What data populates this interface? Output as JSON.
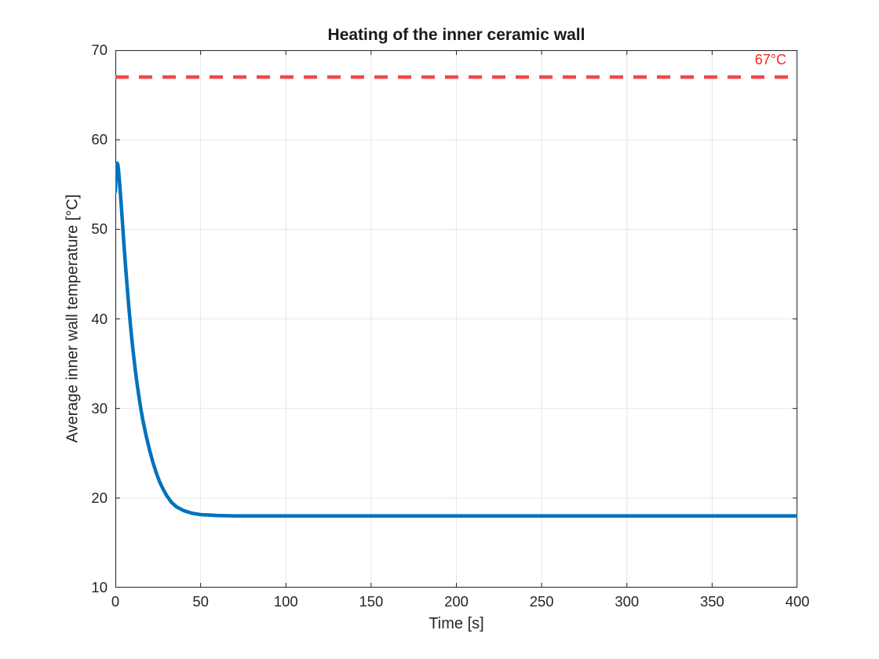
{
  "chart_data": {
    "type": "line",
    "title": "Heating of the inner ceramic wall",
    "xlabel": "Time [s]",
    "ylabel": "Average inner wall temperature [°C]",
    "xlim": [
      0,
      400
    ],
    "ylim": [
      10,
      70
    ],
    "xticks": [
      0,
      50,
      100,
      150,
      200,
      250,
      300,
      350,
      400
    ],
    "yticks": [
      10,
      20,
      30,
      40,
      50,
      60,
      70
    ],
    "grid": true,
    "legend_position": "none",
    "threshold": {
      "value": 67,
      "label": "67°C",
      "line_color": "#f2484a",
      "label_color": "#ee2c1f",
      "style": "dashed"
    },
    "series": [
      {
        "name": "average-inner-wall-temperature",
        "color": "#0072bd",
        "line_width": 4.5,
        "points": [
          [
            0,
            54.2
          ],
          [
            0.5,
            56.6
          ],
          [
            1,
            57.4
          ],
          [
            1.5,
            57.2
          ],
          [
            2,
            56.3
          ],
          [
            3,
            53.9
          ],
          [
            4,
            51.2
          ],
          [
            5,
            48.4
          ],
          [
            6,
            45.8
          ],
          [
            7,
            43.4
          ],
          [
            8,
            41.1
          ],
          [
            9,
            39.0
          ],
          [
            10,
            37.1
          ],
          [
            11,
            35.4
          ],
          [
            12,
            33.8
          ],
          [
            13,
            32.4
          ],
          [
            14,
            31.1
          ],
          [
            15,
            29.9
          ],
          [
            16,
            28.8
          ],
          [
            17,
            27.9
          ],
          [
            18,
            27.0
          ],
          [
            19,
            26.2
          ],
          [
            20,
            25.4
          ],
          [
            22,
            24.0
          ],
          [
            24,
            22.8
          ],
          [
            26,
            21.8
          ],
          [
            28,
            21.0
          ],
          [
            30,
            20.3
          ],
          [
            33,
            19.5
          ],
          [
            36,
            19.0
          ],
          [
            40,
            18.6
          ],
          [
            45,
            18.3
          ],
          [
            50,
            18.15
          ],
          [
            55,
            18.1
          ],
          [
            60,
            18.05
          ],
          [
            70,
            18.0
          ],
          [
            80,
            18.0
          ],
          [
            100,
            18.0
          ],
          [
            150,
            18.0
          ],
          [
            200,
            18.0
          ],
          [
            250,
            18.0
          ],
          [
            300,
            18.0
          ],
          [
            350,
            18.0
          ],
          [
            400,
            18.0
          ]
        ]
      }
    ],
    "colors": {
      "axis": "#222222",
      "grid": "#e6e6e6",
      "background": "#ffffff"
    }
  }
}
